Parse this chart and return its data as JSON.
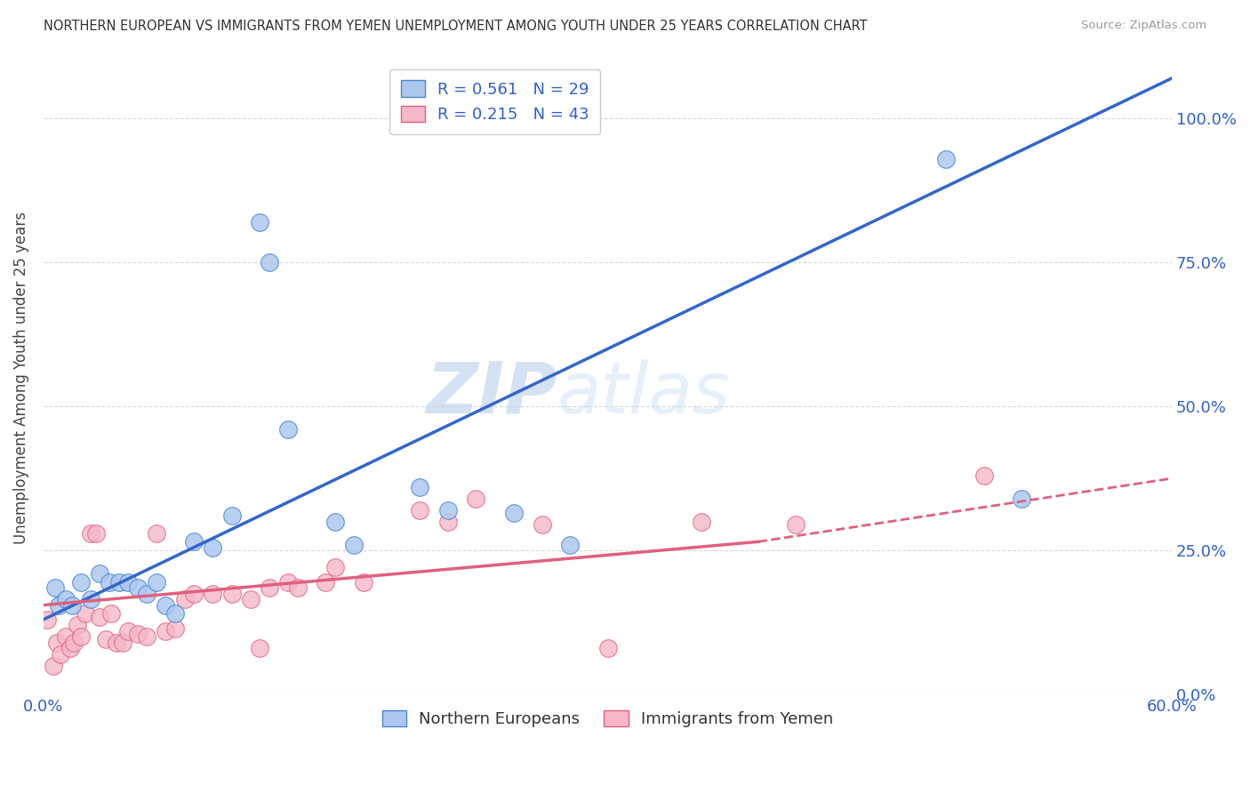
{
  "title": "NORTHERN EUROPEAN VS IMMIGRANTS FROM YEMEN UNEMPLOYMENT AMONG YOUTH UNDER 25 YEARS CORRELATION CHART",
  "source": "Source: ZipAtlas.com",
  "ylabel": "Unemployment Among Youth under 25 years",
  "blue_R": 0.561,
  "blue_N": 29,
  "pink_R": 0.215,
  "pink_N": 43,
  "blue_color": "#adc8ef",
  "blue_edge_color": "#4a86d4",
  "pink_color": "#f5b8c8",
  "pink_edge_color": "#e06080",
  "blue_line_color": "#3366cc",
  "pink_line_color": "#e06080",
  "blue_scatter_x": [
    0.006,
    0.008,
    0.012,
    0.015,
    0.02,
    0.025,
    0.03,
    0.035,
    0.04,
    0.045,
    0.05,
    0.055,
    0.06,
    0.065,
    0.07,
    0.08,
    0.09,
    0.1,
    0.115,
    0.12,
    0.13,
    0.155,
    0.165,
    0.2,
    0.215,
    0.25,
    0.28,
    0.48,
    0.52
  ],
  "blue_scatter_y": [
    0.185,
    0.155,
    0.165,
    0.155,
    0.195,
    0.165,
    0.21,
    0.195,
    0.195,
    0.195,
    0.185,
    0.175,
    0.195,
    0.155,
    0.14,
    0.265,
    0.255,
    0.31,
    0.82,
    0.75,
    0.46,
    0.3,
    0.26,
    0.36,
    0.32,
    0.315,
    0.26,
    0.93,
    0.34
  ],
  "pink_scatter_x": [
    0.002,
    0.005,
    0.007,
    0.009,
    0.012,
    0.014,
    0.016,
    0.018,
    0.02,
    0.022,
    0.025,
    0.028,
    0.03,
    0.033,
    0.036,
    0.039,
    0.042,
    0.045,
    0.05,
    0.055,
    0.06,
    0.065,
    0.07,
    0.075,
    0.08,
    0.09,
    0.1,
    0.11,
    0.115,
    0.12,
    0.13,
    0.135,
    0.15,
    0.155,
    0.17,
    0.2,
    0.215,
    0.23,
    0.265,
    0.3,
    0.35,
    0.4,
    0.5
  ],
  "pink_scatter_y": [
    0.13,
    0.05,
    0.09,
    0.07,
    0.1,
    0.08,
    0.09,
    0.12,
    0.1,
    0.14,
    0.28,
    0.28,
    0.135,
    0.095,
    0.14,
    0.09,
    0.09,
    0.11,
    0.105,
    0.1,
    0.28,
    0.11,
    0.115,
    0.165,
    0.175,
    0.175,
    0.175,
    0.165,
    0.08,
    0.185,
    0.195,
    0.185,
    0.195,
    0.22,
    0.195,
    0.32,
    0.3,
    0.34,
    0.295,
    0.08,
    0.3,
    0.295,
    0.38
  ],
  "blue_trend_x0": 0.0,
  "blue_trend_y0": 0.13,
  "blue_trend_x1": 0.6,
  "blue_trend_y1": 1.07,
  "pink_trend_solid_x0": 0.0,
  "pink_trend_solid_y0": 0.155,
  "pink_trend_solid_x1": 0.38,
  "pink_trend_solid_y1": 0.265,
  "pink_trend_dashed_x0": 0.38,
  "pink_trend_dashed_y0": 0.265,
  "pink_trend_dashed_x1": 0.6,
  "pink_trend_dashed_y1": 0.375,
  "watermark_zip": "ZIP",
  "watermark_atlas": "atlas",
  "legend_label_blue": "Northern Europeans",
  "legend_label_pink": "Immigrants from Yemen",
  "background_color": "#ffffff",
  "grid_color": "#d8d8d8",
  "xlim": [
    0.0,
    0.6
  ],
  "ylim": [
    0.0,
    1.1
  ]
}
